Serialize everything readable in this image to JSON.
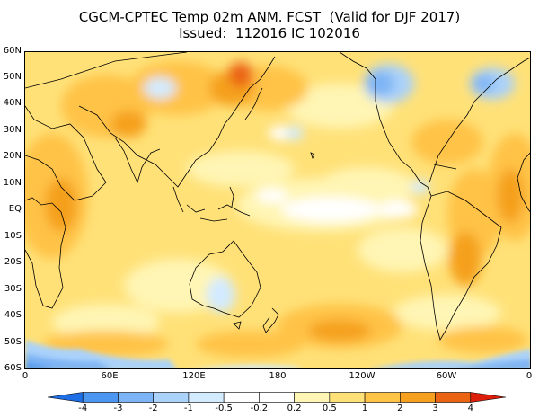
{
  "title": {
    "line1": "CGCM-CPTEC Temp 02m ANM. FCST  (Valid for DJF 2017)",
    "line2": "Issued:  112016 IC 102016"
  },
  "map": {
    "lat_labels": [
      "60N",
      "50N",
      "40N",
      "30N",
      "20N",
      "10N",
      "EQ",
      "10S",
      "20S",
      "30S",
      "40S",
      "50S",
      "60S"
    ],
    "lon_labels": [
      "0",
      "60E",
      "120E",
      "180",
      "120W",
      "60W",
      "0"
    ],
    "lat_range": [
      -60,
      60
    ],
    "lon_range": [
      0,
      360
    ]
  },
  "legend": {
    "labels": [
      "-4",
      "-3",
      "-2",
      "-1",
      "-0.5",
      "-0.2",
      "0.2",
      "0.5",
      "1",
      "2",
      "3",
      "4"
    ],
    "colors": [
      "#1e6ee6",
      "#4b96f0",
      "#7db4f5",
      "#aad2fa",
      "#d2ebff",
      "#ffffff",
      "#fff5b4",
      "#ffe178",
      "#ffc346",
      "#f5a01e",
      "#eb6414",
      "#dc1e0a"
    ]
  },
  "colors": {
    "land_outline": "#000000",
    "base_fill": "#ffe178"
  }
}
